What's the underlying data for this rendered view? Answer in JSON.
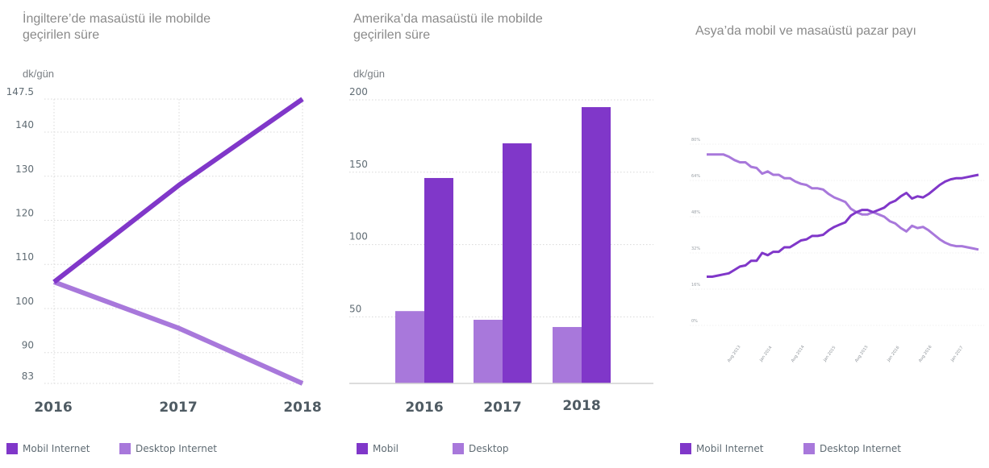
{
  "colors": {
    "mobile": "#8037C9",
    "desktop": "#A878DB",
    "grid": "#d8d8d8",
    "axis_text": "#5f6b73"
  },
  "chart_data": [
    {
      "type": "line",
      "title": "İngiltere’de masaüstü ile mobilde geçirilen süre",
      "ylabel": "dk/gün",
      "xlabel": "",
      "categories": [
        "2016",
        "2017",
        "2018"
      ],
      "yticks": [
        "147.5",
        "140",
        "130",
        "120",
        "110",
        "100",
        "90",
        "83"
      ],
      "ytick_values": [
        147.5,
        140,
        130,
        120,
        110,
        100,
        90,
        83
      ],
      "ylim": [
        83,
        147.5
      ],
      "grid": true,
      "series": [
        {
          "name": "Mobile Internet",
          "legend_label": "Mobil​ Internet",
          "color_key": "mobile",
          "values": [
            106,
            128,
            147.5
          ]
        },
        {
          "name": "Desktop Internet",
          "legend_label": "Desktop Internet",
          "color_key": "desktop",
          "values": [
            106,
            95.5,
            83
          ]
        }
      ],
      "legend_position": "bottom-left"
    },
    {
      "type": "bar",
      "title": "Amerika’da masaüstü ile mobilde geçirilen süre",
      "ylabel": "dk/gün",
      "xlabel": "",
      "categories": [
        "2016",
        "2017",
        "2018"
      ],
      "yticks": [
        "200",
        "150",
        "100",
        "50"
      ],
      "ytick_values": [
        200,
        150,
        100,
        50
      ],
      "ylim": [
        4,
        200
      ],
      "grid": true,
      "series": [
        {
          "name": "Desktop",
          "legend_label": "Desktop",
          "color_key": "desktop",
          "values": [
            54,
            48,
            43
          ]
        },
        {
          "name": "Mobile",
          "legend_label": "Mobil​",
          "color_key": "mobile",
          "values": [
            146,
            170,
            195
          ]
        }
      ],
      "legend_order": [
        "Mobile",
        "Desktop"
      ],
      "legend_position": "bottom-left"
    },
    {
      "type": "line",
      "title": "Asya’da mobil ve masaüstü pazar payı",
      "ylabel": "",
      "xlabel": "",
      "yticks": [
        "80%",
        "64%",
        "48%",
        "32%",
        "16%",
        "0%"
      ],
      "ytick_values": [
        80,
        64,
        48,
        32,
        16,
        0
      ],
      "ylim": [
        0,
        80
      ],
      "xticks": [
        "Aug 2013",
        "Jan 2014",
        "Aug 2014",
        "Jan 2015",
        "Aug 2015",
        "Jan 2016",
        "Aug 2016",
        "Jan 2017"
      ],
      "grid": true,
      "series": [
        {
          "name": "Mobile Internet",
          "legend_label": "Mobil​ Internet",
          "color_key": "mobile",
          "values": [
            21.5,
            21.5,
            22,
            22.5,
            23,
            24.5,
            26,
            26.5,
            28.5,
            28.5,
            32,
            31,
            32.5,
            32.5,
            34.5,
            34.5,
            36,
            37.5,
            38,
            39.5,
            39.5,
            40,
            42,
            43.5,
            44.5,
            45.5,
            48.5,
            50,
            51,
            51,
            50,
            51,
            52,
            54,
            55,
            57,
            58.5,
            56,
            57,
            56.5,
            58,
            60,
            62,
            63.5,
            64.5,
            65,
            65,
            65.5,
            66,
            66.5
          ]
        },
        {
          "name": "Desktop Internet",
          "legend_label": "Desktop Internet",
          "color_key": "desktop",
          "values": [
            75.5,
            75.5,
            75.5,
            75.5,
            74.5,
            73,
            72,
            72,
            70,
            69.5,
            67,
            68,
            66.5,
            66.5,
            65,
            65,
            63.5,
            62.5,
            62,
            60.5,
            60.5,
            60,
            58,
            56.5,
            55.5,
            54.5,
            51.5,
            50,
            49,
            49,
            50,
            49,
            48,
            46,
            45,
            43,
            41.5,
            44,
            43,
            43.5,
            42,
            40,
            38,
            36.5,
            35.5,
            35,
            35,
            34.5,
            34,
            33.5
          ]
        }
      ],
      "legend_position": "bottom-left"
    }
  ]
}
